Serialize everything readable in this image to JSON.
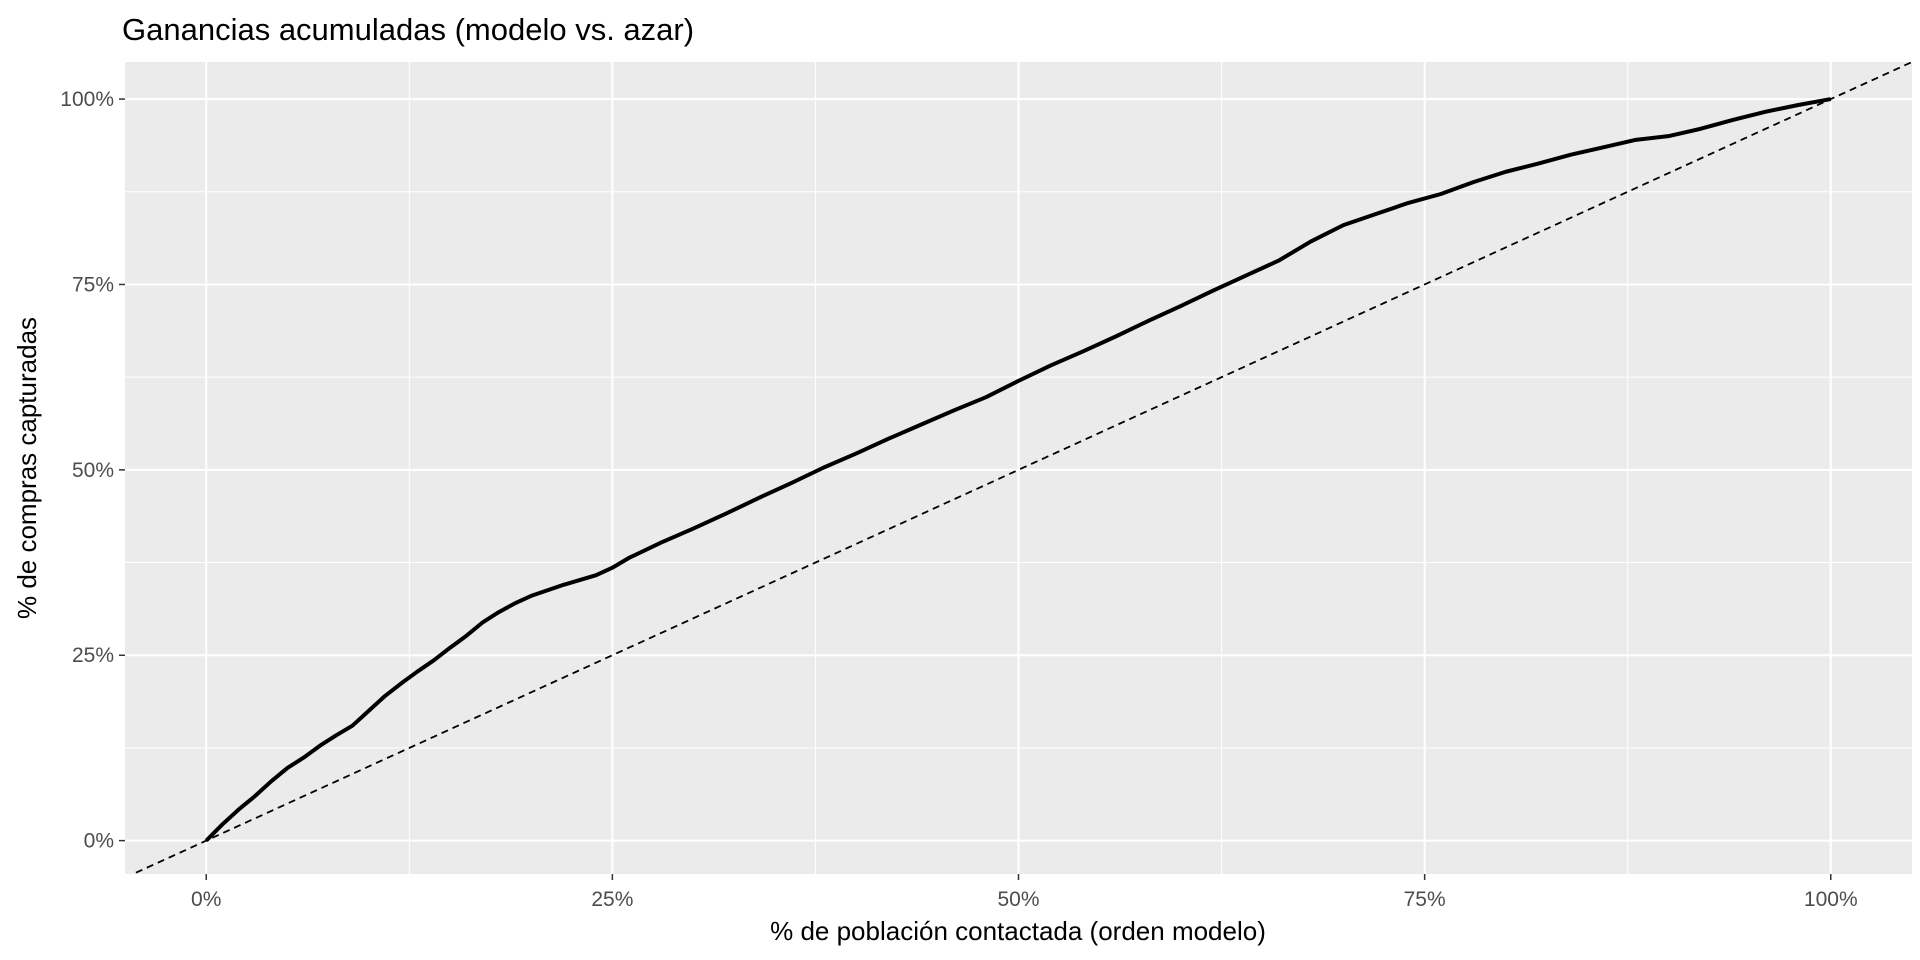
{
  "chart_data": {
    "type": "line",
    "title": "Ganancias acumuladas (modelo vs. azar)",
    "xlabel": "% de población contactada (orden modelo)",
    "ylabel": "% de compras capturadas",
    "xlim": [
      -0.05,
      1.05
    ],
    "ylim": [
      -0.045,
      1.05
    ],
    "x_ticks": [
      0,
      0.25,
      0.5,
      0.75,
      1.0
    ],
    "x_tick_labels": [
      "0%",
      "25%",
      "50%",
      "75%",
      "100%"
    ],
    "y_ticks": [
      0,
      0.25,
      0.5,
      0.75,
      1.0
    ],
    "y_tick_labels": [
      "0%",
      "25%",
      "50%",
      "75%",
      "100%"
    ],
    "grid": true,
    "legend": "none",
    "colors": {
      "panel_background": "#EBEBEB",
      "grid": "#FFFFFF",
      "series": "#000000",
      "tick_text": "#4D4D4D"
    },
    "series": [
      {
        "style": "solid",
        "x": [
          0,
          0.01,
          0.02,
          0.03,
          0.04,
          0.05,
          0.06,
          0.07,
          0.08,
          0.09,
          0.1,
          0.11,
          0.12,
          0.13,
          0.14,
          0.15,
          0.16,
          0.17,
          0.18,
          0.19,
          0.2,
          0.22,
          0.24,
          0.25,
          0.26,
          0.28,
          0.3,
          0.32,
          0.34,
          0.36,
          0.38,
          0.4,
          0.42,
          0.44,
          0.46,
          0.48,
          0.5,
          0.52,
          0.54,
          0.56,
          0.58,
          0.6,
          0.62,
          0.64,
          0.66,
          0.68,
          0.7,
          0.72,
          0.74,
          0.76,
          0.78,
          0.8,
          0.82,
          0.84,
          0.86,
          0.88,
          0.9,
          0.92,
          0.94,
          0.96,
          0.98,
          1.0
        ],
        "y": [
          0,
          0.022,
          0.042,
          0.06,
          0.08,
          0.098,
          0.112,
          0.128,
          0.142,
          0.155,
          0.175,
          0.195,
          0.212,
          0.228,
          0.243,
          0.26,
          0.276,
          0.294,
          0.308,
          0.32,
          0.33,
          0.345,
          0.358,
          0.368,
          0.381,
          0.402,
          0.421,
          0.441,
          0.462,
          0.482,
          0.503,
          0.522,
          0.542,
          0.561,
          0.58,
          0.598,
          0.62,
          0.641,
          0.66,
          0.68,
          0.701,
          0.721,
          0.742,
          0.762,
          0.782,
          0.808,
          0.83,
          0.845,
          0.86,
          0.872,
          0.888,
          0.902,
          0.913,
          0.925,
          0.935,
          0.945,
          0.95,
          0.96,
          0.972,
          0.983,
          0.992,
          1.0
        ]
      },
      {
        "style": "dashed",
        "x": [
          -0.05,
          1.05
        ],
        "y": [
          -0.05,
          1.05
        ]
      }
    ]
  }
}
